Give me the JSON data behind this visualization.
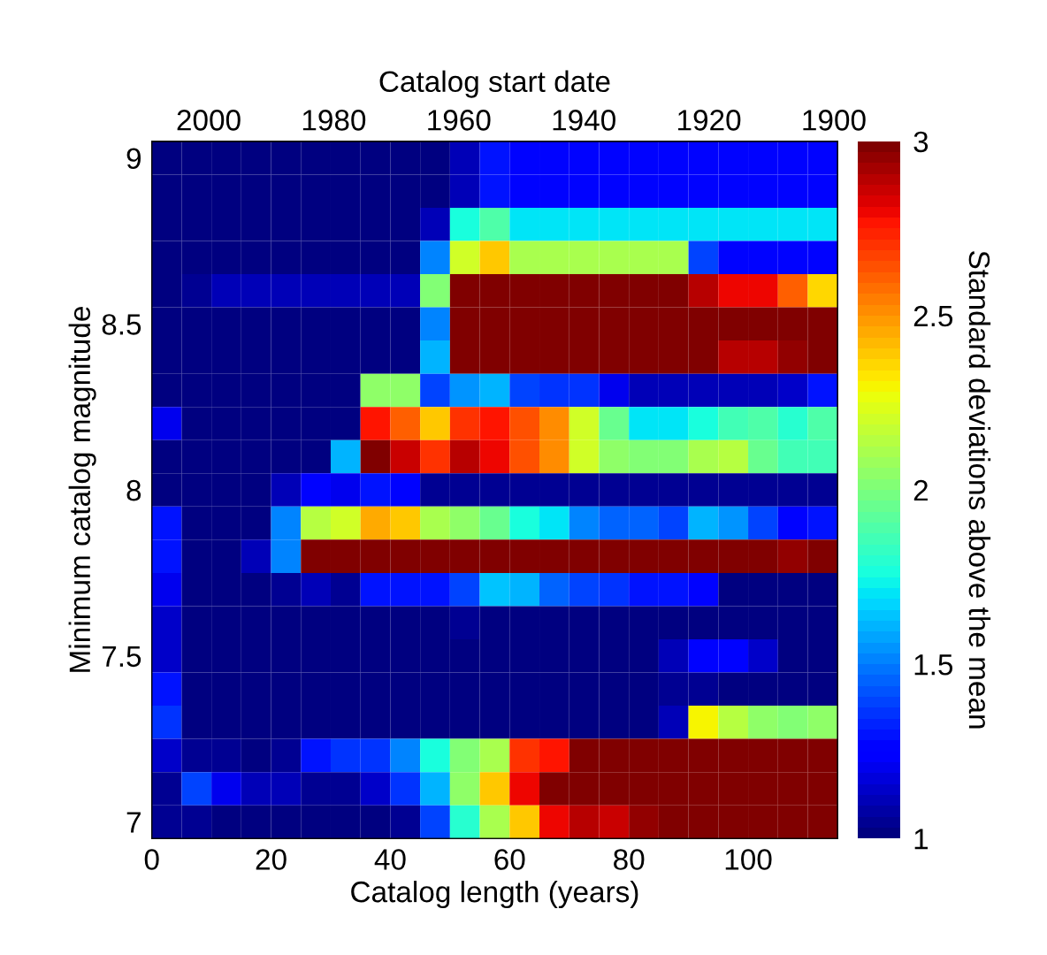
{
  "chart_data": {
    "type": "heatmap",
    "xlabel": "Catalog length (years)",
    "ylabel": "Minimum catalog magnitude",
    "x2label": "Catalog start date",
    "clabel": "Standard deviations above the mean",
    "x": [
      2.5,
      7.5,
      12.5,
      17.5,
      22.5,
      27.5,
      32.5,
      37.5,
      42.5,
      47.5,
      52.5,
      57.5,
      62.5,
      67.5,
      72.5,
      77.5,
      82.5,
      87.5,
      92.5,
      97.5,
      102.5,
      107.5,
      112.5
    ],
    "y": [
      9.0,
      8.9,
      8.8,
      8.7,
      8.6,
      8.5,
      8.4,
      8.3,
      8.2,
      8.1,
      8.0,
      7.9,
      7.8,
      7.7,
      7.6,
      7.5,
      7.4,
      7.3,
      7.2,
      7.1,
      7.0
    ],
    "cells": [
      [
        1.0,
        1.0,
        1.0,
        1.0,
        1.0,
        1.0,
        1.0,
        1.0,
        1.0,
        1.0,
        1.1,
        1.3,
        1.25,
        1.25,
        1.25,
        1.25,
        1.25,
        1.25,
        1.25,
        1.25,
        1.25,
        1.25,
        1.25
      ],
      [
        1.0,
        1.0,
        1.0,
        1.0,
        1.0,
        1.0,
        1.0,
        1.0,
        1.0,
        1.0,
        1.1,
        1.3,
        1.25,
        1.25,
        1.25,
        1.25,
        1.25,
        1.25,
        1.25,
        1.25,
        1.25,
        1.25,
        1.25
      ],
      [
        1.0,
        1.0,
        1.0,
        1.0,
        1.0,
        1.0,
        1.0,
        1.0,
        1.0,
        1.1,
        1.75,
        1.9,
        1.7,
        1.7,
        1.7,
        1.7,
        1.7,
        1.7,
        1.7,
        1.7,
        1.7,
        1.7,
        1.7
      ],
      [
        1.0,
        1.0,
        1.0,
        1.0,
        1.0,
        1.0,
        1.0,
        1.0,
        1.0,
        1.5,
        2.2,
        2.4,
        2.1,
        2.1,
        2.1,
        2.1,
        2.1,
        2.1,
        1.4,
        1.25,
        1.25,
        1.25,
        1.25
      ],
      [
        1.0,
        1.05,
        1.1,
        1.1,
        1.1,
        1.1,
        1.1,
        1.1,
        1.1,
        2.0,
        3.0,
        3.0,
        3.0,
        3.0,
        3.0,
        3.0,
        3.0,
        3.0,
        2.9,
        2.8,
        2.8,
        2.6,
        2.35
      ],
      [
        1.0,
        1.0,
        1.0,
        1.0,
        1.0,
        1.0,
        1.0,
        1.0,
        1.0,
        1.5,
        3.0,
        3.0,
        3.0,
        3.0,
        3.0,
        3.0,
        3.0,
        3.0,
        3.0,
        3.0,
        3.0,
        3.0,
        3.0
      ],
      [
        1.0,
        1.0,
        1.0,
        1.0,
        1.0,
        1.0,
        1.0,
        1.0,
        1.0,
        1.6,
        3.0,
        3.0,
        3.0,
        3.0,
        3.0,
        3.0,
        3.0,
        3.0,
        3.0,
        2.9,
        2.9,
        2.95,
        3.0
      ],
      [
        1.0,
        1.0,
        1.0,
        1.0,
        1.0,
        1.0,
        1.0,
        2.05,
        2.05,
        1.4,
        1.55,
        1.6,
        1.4,
        1.35,
        1.35,
        1.2,
        1.1,
        1.1,
        1.1,
        1.1,
        1.1,
        1.15,
        1.3
      ],
      [
        1.2,
        1.0,
        1.0,
        1.0,
        1.0,
        1.0,
        1.0,
        2.75,
        2.6,
        2.4,
        2.7,
        2.75,
        2.65,
        2.5,
        2.2,
        1.95,
        1.7,
        1.7,
        1.75,
        1.85,
        1.9,
        1.8,
        1.9
      ],
      [
        1.0,
        1.0,
        1.0,
        1.0,
        1.0,
        1.0,
        1.6,
        3.0,
        2.85,
        2.7,
        2.9,
        2.8,
        2.65,
        2.5,
        2.2,
        2.05,
        2.0,
        2.0,
        2.1,
        2.15,
        1.95,
        1.85,
        1.85
      ],
      [
        1.0,
        1.0,
        1.0,
        1.0,
        1.1,
        1.25,
        1.2,
        1.3,
        1.25,
        1.05,
        1.05,
        1.05,
        1.05,
        1.05,
        1.05,
        1.05,
        1.05,
        1.05,
        1.05,
        1.05,
        1.05,
        1.05,
        1.05
      ],
      [
        1.3,
        1.0,
        1.0,
        1.0,
        1.5,
        2.15,
        2.2,
        2.45,
        2.4,
        2.1,
        2.05,
        1.95,
        1.75,
        1.7,
        1.5,
        1.45,
        1.45,
        1.4,
        1.6,
        1.55,
        1.4,
        1.25,
        1.3
      ],
      [
        1.3,
        1.0,
        1.0,
        1.1,
        1.5,
        3.0,
        3.0,
        3.0,
        3.0,
        3.0,
        3.0,
        3.0,
        3.0,
        3.0,
        3.0,
        3.0,
        3.0,
        3.0,
        3.0,
        3.0,
        3.0,
        2.95,
        3.0
      ],
      [
        1.2,
        1.0,
        1.0,
        1.0,
        1.05,
        1.1,
        1.05,
        1.3,
        1.3,
        1.3,
        1.4,
        1.65,
        1.6,
        1.45,
        1.4,
        1.35,
        1.3,
        1.3,
        1.25,
        1.0,
        1.0,
        1.0,
        1.0
      ],
      [
        1.15,
        1.0,
        1.0,
        1.0,
        1.0,
        1.0,
        1.0,
        1.0,
        1.0,
        1.0,
        1.05,
        1.0,
        1.0,
        1.0,
        1.0,
        1.0,
        1.0,
        1.0,
        1.0,
        1.0,
        1.0,
        1.0,
        1.0
      ],
      [
        1.15,
        1.0,
        1.0,
        1.0,
        1.0,
        1.0,
        1.0,
        1.0,
        1.0,
        1.0,
        1.0,
        1.0,
        1.0,
        1.0,
        1.0,
        1.0,
        1.0,
        1.1,
        1.25,
        1.25,
        1.15,
        1.0,
        1.0
      ],
      [
        1.3,
        1.0,
        1.0,
        1.0,
        1.0,
        1.0,
        1.0,
        1.0,
        1.0,
        1.0,
        1.0,
        1.0,
        1.0,
        1.0,
        1.0,
        1.0,
        1.0,
        1.05,
        1.05,
        1.0,
        1.0,
        1.0,
        1.0
      ],
      [
        1.35,
        1.0,
        1.0,
        1.0,
        1.0,
        1.0,
        1.0,
        1.0,
        1.0,
        1.0,
        1.0,
        1.0,
        1.0,
        1.0,
        1.0,
        1.0,
        1.0,
        1.1,
        2.3,
        2.15,
        2.05,
        2.0,
        2.05
      ],
      [
        1.15,
        1.05,
        1.05,
        1.0,
        1.05,
        1.3,
        1.35,
        1.35,
        1.5,
        1.75,
        2.0,
        2.1,
        2.7,
        2.75,
        3.0,
        3.0,
        3.0,
        3.0,
        3.0,
        3.0,
        3.0,
        3.0,
        3.0
      ],
      [
        1.05,
        1.4,
        1.2,
        1.1,
        1.1,
        1.05,
        1.05,
        1.15,
        1.35,
        1.6,
        2.05,
        2.4,
        2.8,
        3.0,
        3.0,
        3.0,
        3.0,
        3.0,
        3.0,
        3.0,
        3.0,
        3.0,
        3.0
      ],
      [
        1.05,
        1.05,
        1.0,
        1.0,
        1.0,
        1.0,
        1.0,
        1.0,
        1.05,
        1.4,
        1.8,
        2.1,
        2.4,
        2.8,
        2.9,
        2.85,
        2.95,
        3.0,
        3.0,
        3.0,
        3.0,
        3.0,
        3.0
      ]
    ],
    "xlim": [
      0,
      115
    ],
    "xticks": [
      0,
      20,
      40,
      60,
      80,
      100
    ],
    "ylim": [
      6.95,
      9.05
    ],
    "yticks": [
      7,
      7.5,
      8,
      8.5,
      9
    ],
    "x2lim": [
      2009.1,
      1899.4
    ],
    "x2ticks": [
      2000,
      1980,
      1960,
      1940,
      1920,
      1900
    ],
    "clim": [
      1,
      3
    ],
    "cticks": [
      1,
      1.5,
      2,
      2.5,
      3
    ]
  }
}
